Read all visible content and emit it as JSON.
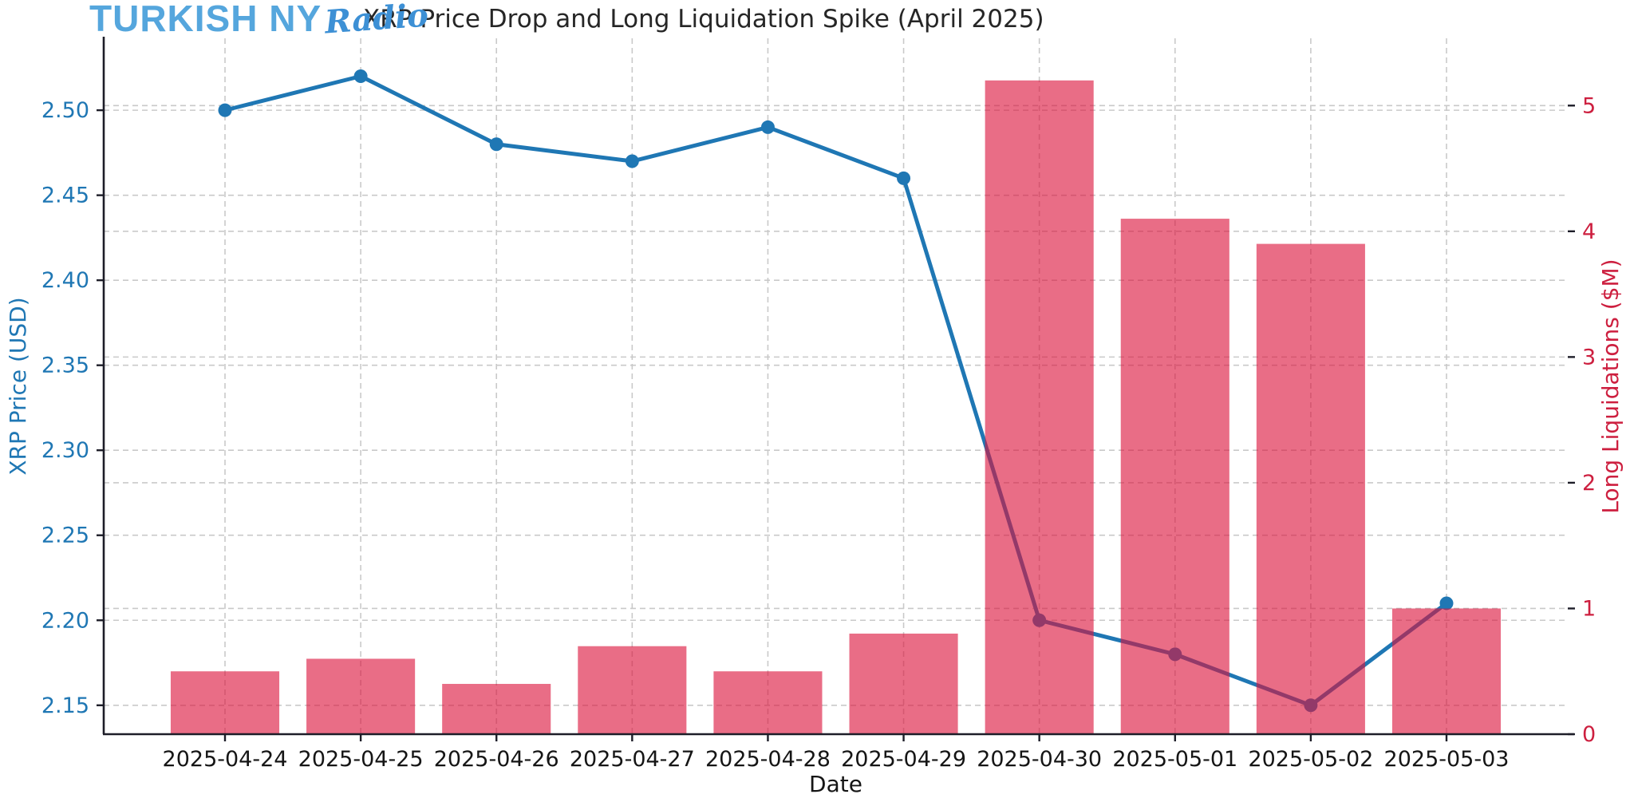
{
  "logo": {
    "brand": "TURKISH NY",
    "script": "Radio"
  },
  "title": "XRP Price Drop and Long Liquidation Spike (April 2025)",
  "chart_data": {
    "type": "line+bar combo, dual y-axes",
    "categories": [
      "2025-04-24",
      "2025-04-25",
      "2025-04-26",
      "2025-04-27",
      "2025-04-28",
      "2025-04-29",
      "2025-04-30",
      "2025-05-01",
      "2025-05-02",
      "2025-05-03"
    ],
    "series": [
      {
        "name": "XRP Price (USD)",
        "type": "line",
        "axis": "left",
        "color": "#1f77b4",
        "marker": "circle",
        "values": [
          2.5,
          2.52,
          2.48,
          2.47,
          2.49,
          2.46,
          2.2,
          2.18,
          2.15,
          2.21
        ]
      },
      {
        "name": "Long Liquidations ($M)",
        "type": "bar",
        "axis": "right",
        "color": "#DC143C",
        "opacity": 0.62,
        "values": [
          0.5,
          0.6,
          0.4,
          0.7,
          0.5,
          0.8,
          5.2,
          4.1,
          3.9,
          1.0
        ]
      }
    ],
    "xlabel": "Date",
    "left_axis": {
      "label": "XRP Price (USD)",
      "color": "#1f77b4",
      "tick_labels": [
        "2.15",
        "2.20",
        "2.25",
        "2.30",
        "2.35",
        "2.40",
        "2.45",
        "2.50"
      ],
      "range": [
        2.133,
        2.5423
      ]
    },
    "right_axis": {
      "label": "Long Liquidations ($M)",
      "color": "#cd1f3f",
      "tick_labels": [
        "0",
        "1",
        "2",
        "3",
        "4",
        "5"
      ],
      "range": [
        0,
        5.535
      ]
    },
    "grid": {
      "visible": true,
      "style": "dashed",
      "color": "#c9c9c9",
      "vertical_per_category": true
    },
    "legend": {
      "visible": false
    },
    "styles": {
      "spine_color": "#1d1d28",
      "date_label_color": "#151515",
      "title_color": "#262626"
    }
  }
}
